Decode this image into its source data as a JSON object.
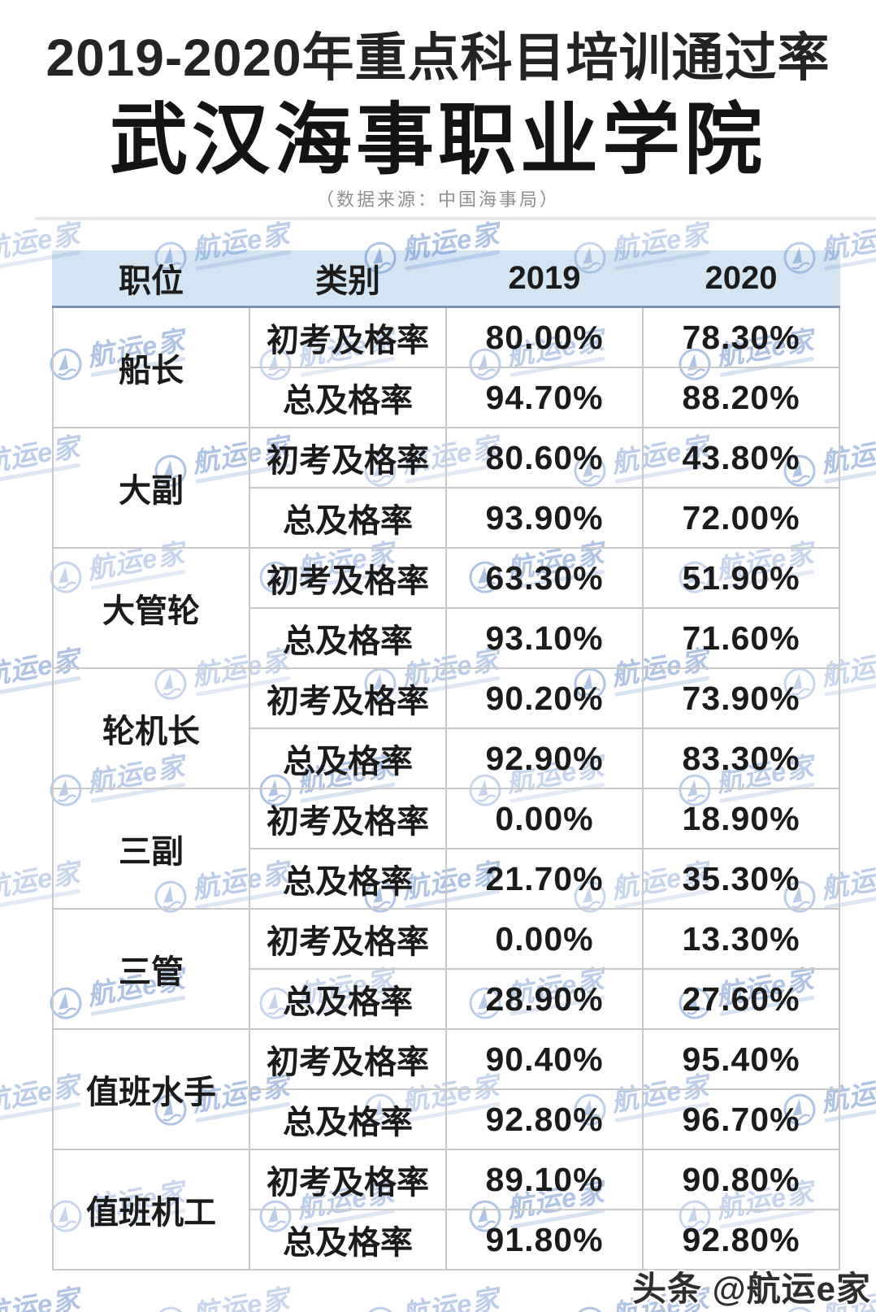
{
  "header": {
    "title_line1": "2019-2020年重点科目培训通过率",
    "title_line2": "武汉海事职业学院",
    "subtitle": "（数据来源：中国海事局）"
  },
  "watermark": {
    "brand": "航运e家",
    "footer": "头条 @航运e家",
    "logo_icon": "sailboat-icon",
    "color": "#4c79c4"
  },
  "colors": {
    "table_header_bg": "#d3e5f2",
    "table_header_rule": "#7b96b1",
    "cell_border": "#c9c9c9",
    "title_text": "#141414",
    "subtitle_gray": "#8f8f8f"
  },
  "chart_data": {
    "type": "table",
    "title": "2019-2020年重点科目培训通过率",
    "subtitle": "武汉海事职业学院",
    "source": "（数据来源：中国海事局）",
    "columns": [
      "职位",
      "类别",
      "2019",
      "2020"
    ],
    "groups": [
      {
        "position": "船长",
        "rows": [
          [
            "初考及格率",
            "80.00%",
            "78.30%"
          ],
          [
            "总及格率",
            "94.70%",
            "88.20%"
          ]
        ]
      },
      {
        "position": "大副",
        "rows": [
          [
            "初考及格率",
            "80.60%",
            "43.80%"
          ],
          [
            "总及格率",
            "93.90%",
            "72.00%"
          ]
        ]
      },
      {
        "position": "大管轮",
        "rows": [
          [
            "初考及格率",
            "63.30%",
            "51.90%"
          ],
          [
            "总及格率",
            "93.10%",
            "71.60%"
          ]
        ]
      },
      {
        "position": "轮机长",
        "rows": [
          [
            "初考及格率",
            "90.20%",
            "73.90%"
          ],
          [
            "总及格率",
            "92.90%",
            "83.30%"
          ]
        ]
      },
      {
        "position": "三副",
        "rows": [
          [
            "初考及格率",
            "0.00%",
            "18.90%"
          ],
          [
            "总及格率",
            "21.70%",
            "35.30%"
          ]
        ]
      },
      {
        "position": "三管",
        "rows": [
          [
            "初考及格率",
            "0.00%",
            "13.30%"
          ],
          [
            "总及格率",
            "28.90%",
            "27.60%"
          ]
        ]
      },
      {
        "position": "值班水手",
        "rows": [
          [
            "初考及格率",
            "90.40%",
            "95.40%"
          ],
          [
            "总及格率",
            "92.80%",
            "96.70%"
          ]
        ]
      },
      {
        "position": "值班机工",
        "rows": [
          [
            "初考及格率",
            "89.10%",
            "90.80%"
          ],
          [
            "总及格率",
            "91.80%",
            "92.80%"
          ]
        ]
      }
    ]
  }
}
